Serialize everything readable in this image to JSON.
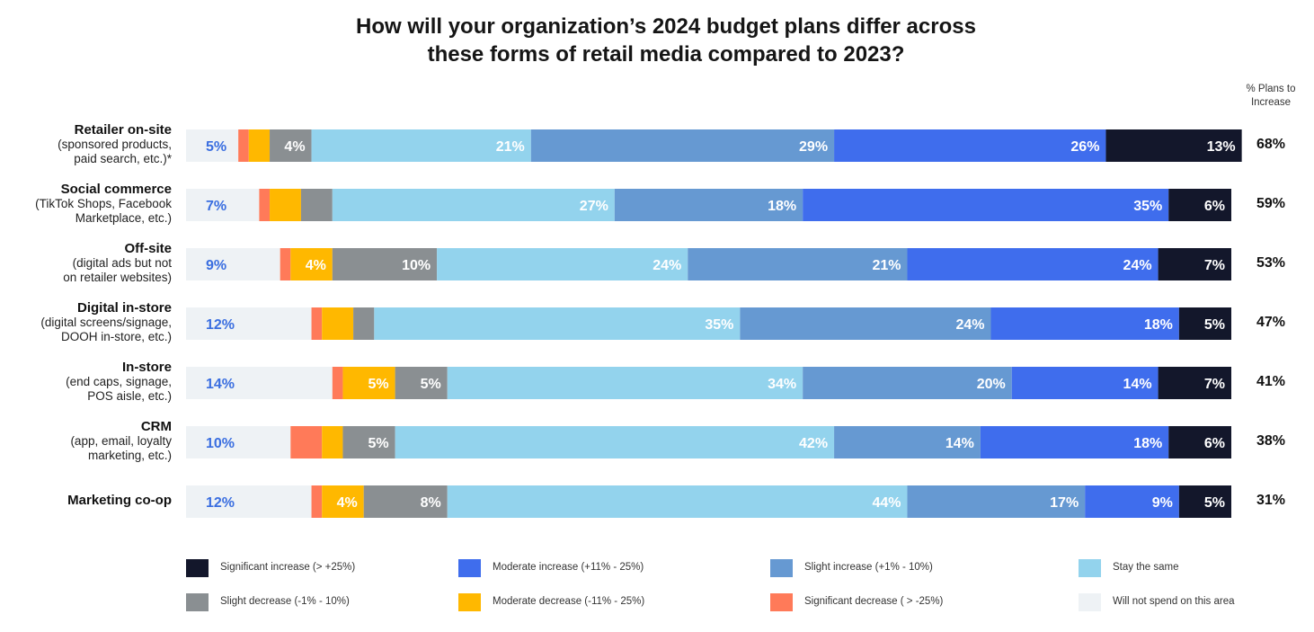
{
  "chart_data": {
    "type": "bar",
    "orientation": "horizontal",
    "stacked": true,
    "title": "How will your organization’s 2024 budget plans differ across these forms of retail media compared to 2023?",
    "title_lines": [
      "How will your organization’s 2024 budget plans differ across",
      "these forms of retail media compared to 2023?"
    ],
    "right_column_header_lines": [
      "% Plans to",
      "Increase"
    ],
    "categories": [
      {
        "label": "Retailer on-site",
        "sublabel_lines": [
          "(sponsored products,",
          "paid search, etc.)*"
        ],
        "plans_to_increase": "68%"
      },
      {
        "label": "Social commerce",
        "sublabel_lines": [
          "(TikTok Shops, Facebook",
          "Marketplace, etc.)"
        ],
        "plans_to_increase": "59%"
      },
      {
        "label": "Off-site",
        "sublabel_lines": [
          "(digital ads but not",
          "on retailer websites)"
        ],
        "plans_to_increase": "53%"
      },
      {
        "label": "Digital in-store",
        "sublabel_lines": [
          "(digital screens/signage,",
          "DOOH in-store, etc.)"
        ],
        "plans_to_increase": "47%"
      },
      {
        "label": "In-store",
        "sublabel_lines": [
          "(end caps, signage,",
          "POS aisle, etc.)"
        ],
        "plans_to_increase": "41%"
      },
      {
        "label": "CRM",
        "sublabel_lines": [
          "(app, email, loyalty",
          "marketing, etc.)"
        ],
        "plans_to_increase": "38%"
      },
      {
        "label": "Marketing co-op",
        "sublabel_lines": [],
        "plans_to_increase": "31%"
      }
    ],
    "series": [
      {
        "name": "Will not spend on this area",
        "color": "#eef2f5",
        "label_color": "#3a6ee0",
        "values": [
          5,
          7,
          9,
          12,
          14,
          10,
          12
        ],
        "labels": [
          "5%",
          "7%",
          "9%",
          "12%",
          "14%",
          "10%",
          "12%"
        ],
        "label_align": "start"
      },
      {
        "name": "Significant decrease ( > -25%)",
        "color": "#ff7a59",
        "label_color": "#ffffff",
        "values": [
          1,
          1,
          1,
          1,
          1,
          3,
          1
        ],
        "labels": [
          "",
          "",
          "",
          "",
          "",
          "",
          ""
        ],
        "label_align": "end"
      },
      {
        "name": "Moderate decrease (-11% - 25%)",
        "color": "#ffb800",
        "label_color": "#ffffff",
        "values": [
          2,
          3,
          4,
          3,
          5,
          2,
          4
        ],
        "labels": [
          "",
          "",
          "4%",
          "",
          "5%",
          "",
          "4%"
        ],
        "label_align": "end"
      },
      {
        "name": "Slight decrease (-1% - 10%)",
        "color": "#8a8f92",
        "label_color": "#ffffff",
        "values": [
          4,
          3,
          10,
          2,
          5,
          5,
          8
        ],
        "labels": [
          "4%",
          "",
          "10%",
          "",
          "5%",
          "5%",
          "8%"
        ],
        "label_align": "end"
      },
      {
        "name": "Stay the same",
        "color": "#93d3ed",
        "label_color": "#ffffff",
        "values": [
          21,
          27,
          24,
          35,
          34,
          42,
          44
        ],
        "labels": [
          "21%",
          "27%",
          "24%",
          "35%",
          "34%",
          "42%",
          "44%"
        ],
        "label_align": "end"
      },
      {
        "name": "Slight increase (+1% - 10%)",
        "color": "#6699d2",
        "label_color": "#ffffff",
        "values": [
          29,
          18,
          21,
          24,
          20,
          14,
          17
        ],
        "labels": [
          "29%",
          "18%",
          "21%",
          "24%",
          "20%",
          "14%",
          "17%"
        ],
        "label_align": "end"
      },
      {
        "name": "Moderate increase (+11% - 25%)",
        "color": "#3f6ded",
        "label_color": "#ffffff",
        "values": [
          26,
          35,
          24,
          18,
          14,
          18,
          9
        ],
        "labels": [
          "26%",
          "35%",
          "24%",
          "18%",
          "14%",
          "18%",
          "9%"
        ],
        "label_align": "end"
      },
      {
        "name": "Significant increase (> +25%)",
        "color": "#13172b",
        "label_color": "#ffffff",
        "values": [
          13,
          6,
          7,
          5,
          7,
          6,
          5
        ],
        "labels": [
          "13%",
          "6%",
          "7%",
          "5%",
          "7%",
          "6%",
          "5%"
        ],
        "label_align": "end"
      }
    ],
    "legend_order": [
      "Significant increase (> +25%)",
      "Moderate increase (+11% - 25%)",
      "Slight increase (+1% - 10%)",
      "Stay the same",
      "Slight decrease (-1% - 10%)",
      "Moderate decrease (-11% - 25%)",
      "Significant decrease ( > -25%)",
      "Will not spend on this area"
    ],
    "legend_placement": "bottom",
    "xlim": [
      0,
      100
    ],
    "grid": false
  }
}
